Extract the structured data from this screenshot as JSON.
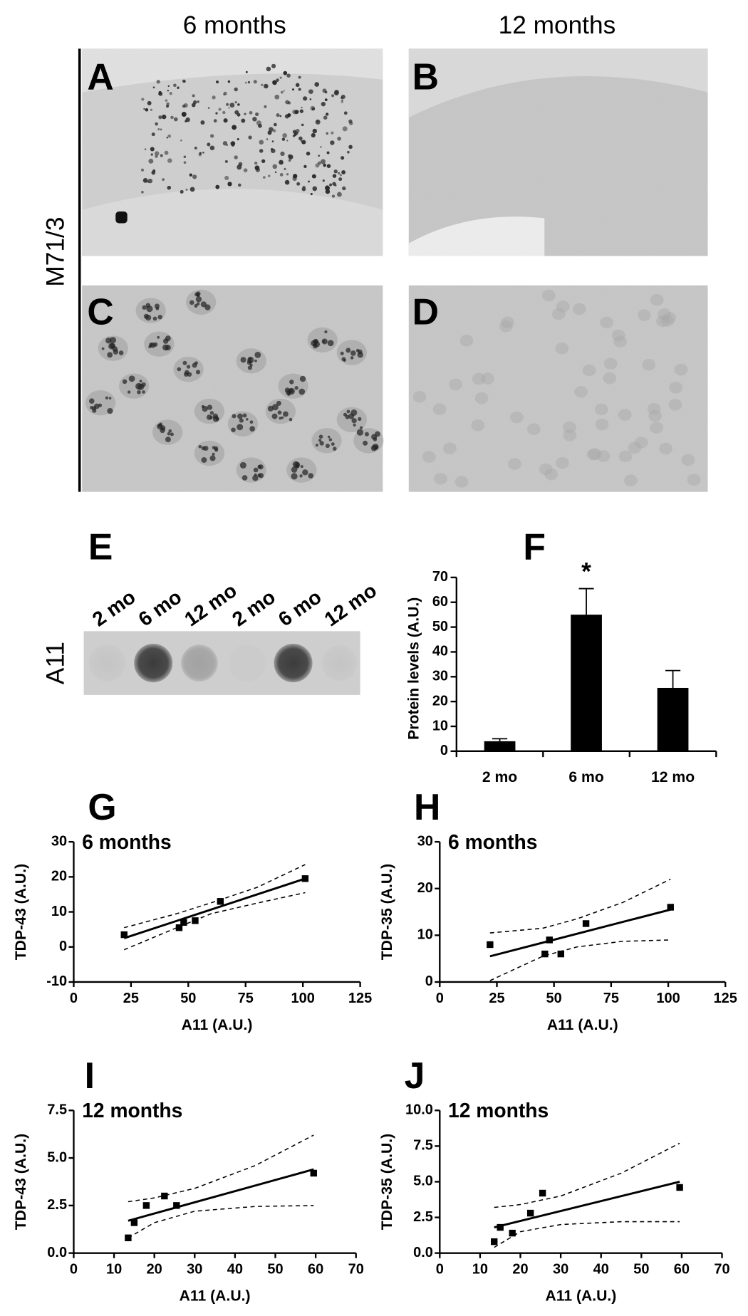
{
  "figure": {
    "column_headers": [
      "6 months",
      "12 months"
    ],
    "row_label": "M71/3",
    "panels": [
      "A",
      "B",
      "C",
      "D",
      "E",
      "F",
      "G",
      "H",
      "I",
      "J"
    ],
    "blot": {
      "row_label": "A11",
      "lanes": [
        "2 mo",
        "6 mo",
        "12 mo",
        "2 mo",
        "6 mo",
        "12 mo"
      ]
    }
  },
  "chart_data": [
    {
      "type": "bar",
      "ylabel": "Protein levels (A.U.)",
      "categories": [
        "2 mo",
        "6 mo",
        "12 mo"
      ],
      "values": [
        4,
        55,
        25.5
      ],
      "errors": [
        1,
        10.5,
        7
      ],
      "color": "#000000",
      "ylim": [
        0,
        70
      ],
      "yticks": [
        0,
        10,
        20,
        30,
        40,
        50,
        60,
        70
      ],
      "annotation": {
        "text": "*",
        "category": "6 mo"
      }
    },
    {
      "type": "scatter",
      "title": "6 months",
      "xlabel": "A11 (A.U.)",
      "ylabel": "TDP-43 (A.U.)",
      "x": [
        22,
        46,
        48,
        53,
        64,
        101
      ],
      "values": [
        3.5,
        5.5,
        7,
        7.5,
        13,
        19.5
      ],
      "fit": {
        "x": [
          22,
          101
        ],
        "values": [
          2.5,
          19.5
        ]
      },
      "band_upper": {
        "x": [
          22,
          45,
          60,
          80,
          101
        ],
        "values": [
          5.5,
          9.5,
          12.6,
          17,
          23.5
        ]
      },
      "band_lower": {
        "x": [
          22,
          45,
          60,
          80,
          101
        ],
        "values": [
          -0.8,
          5.5,
          9.5,
          12.5,
          15.5
        ]
      },
      "color": "#000000",
      "xlim": [
        0,
        125
      ],
      "ylim": [
        -10,
        30
      ],
      "xticks": [
        0,
        25,
        50,
        75,
        100,
        125
      ],
      "yticks": [
        -10,
        0,
        10,
        20,
        30
      ]
    },
    {
      "type": "scatter",
      "title": "6 months",
      "xlabel": "A11 (A.U.)",
      "ylabel": "TDP-35 (A.U.)",
      "x": [
        22,
        46,
        48,
        53,
        64,
        101
      ],
      "values": [
        8,
        6,
        9,
        6,
        12.5,
        16
      ],
      "fit": {
        "x": [
          22,
          101
        ],
        "values": [
          5.5,
          15.5
        ]
      },
      "band_upper": {
        "x": [
          22,
          45,
          60,
          80,
          101
        ],
        "values": [
          10.5,
          11.5,
          13.5,
          17,
          22
        ]
      },
      "band_lower": {
        "x": [
          22,
          45,
          60,
          80,
          101
        ],
        "values": [
          0.3,
          5.5,
          7.5,
          8.7,
          9
        ]
      },
      "color": "#000000",
      "xlim": [
        0,
        125
      ],
      "ylim": [
        0,
        30
      ],
      "xticks": [
        0,
        25,
        50,
        75,
        100,
        125
      ],
      "yticks": [
        0,
        10,
        20,
        30
      ]
    },
    {
      "type": "scatter",
      "title": "12 months",
      "xlabel": "A11 (A.U.)",
      "ylabel": "TDP-43 (A.U.)",
      "x": [
        13.5,
        15,
        18,
        22.5,
        25.5,
        59.5
      ],
      "values": [
        0.8,
        1.6,
        2.5,
        3,
        2.5,
        4.2
      ],
      "fit": {
        "x": [
          13.5,
          59.5
        ],
        "values": [
          1.7,
          4.4
        ]
      },
      "band_upper": {
        "x": [
          13.5,
          20,
          30,
          45,
          59.5
        ],
        "values": [
          2.7,
          2.9,
          3.4,
          4.6,
          6.2
        ]
      },
      "band_lower": {
        "x": [
          13.5,
          20,
          30,
          45,
          59.5
        ],
        "values": [
          0.8,
          1.6,
          2.2,
          2.45,
          2.5
        ]
      },
      "color": "#000000",
      "xlim": [
        0,
        70
      ],
      "ylim": [
        0,
        7.5
      ],
      "xticks": [
        0,
        10,
        20,
        30,
        40,
        50,
        60,
        70
      ],
      "yticks": [
        {
          "value": 0,
          "label": "0.0"
        },
        2.5,
        {
          "value": 5,
          "label": "5.0"
        },
        7.5
      ]
    },
    {
      "type": "scatter",
      "title": "12 months",
      "xlabel": "A11 (A.U.)",
      "ylabel": "TDP-35 (A.U.)",
      "x": [
        13.5,
        15,
        18,
        22.5,
        25.5,
        59.5
      ],
      "values": [
        0.8,
        1.8,
        1.4,
        2.8,
        4.2,
        4.6
      ],
      "fit": {
        "x": [
          13.5,
          59.5
        ],
        "values": [
          1.8,
          5
        ]
      },
      "band_upper": {
        "x": [
          13.5,
          20,
          30,
          45,
          59.5
        ],
        "values": [
          3.2,
          3.4,
          4,
          5.6,
          7.7
        ]
      },
      "band_lower": {
        "x": [
          13.5,
          20,
          30,
          45,
          59.5
        ],
        "values": [
          0.4,
          1.5,
          2,
          2.2,
          2.2
        ]
      },
      "color": "#000000",
      "xlim": [
        0,
        70
      ],
      "ylim": [
        0,
        10
      ],
      "xticks": [
        0,
        10,
        20,
        30,
        40,
        50,
        60,
        70
      ],
      "yticks": [
        {
          "value": 0,
          "label": "0.0"
        },
        2.5,
        {
          "value": 5,
          "label": "5.0"
        },
        7.5,
        {
          "value": 10,
          "label": "10.0"
        }
      ]
    }
  ]
}
